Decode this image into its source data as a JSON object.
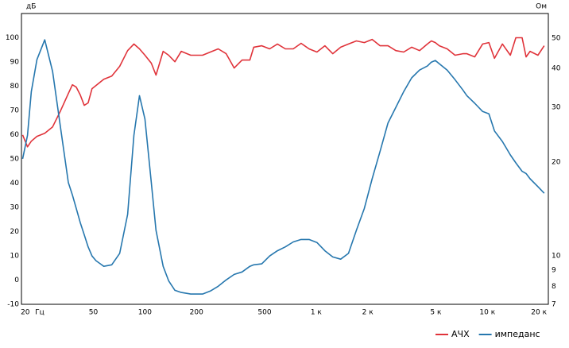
{
  "chart_data": {
    "type": "line",
    "ylabel": "дБ",
    "y2label": "Ом",
    "xlabel": "Гц",
    "x": [
      19.3,
      20.6,
      21.7,
      23.4,
      26,
      28.9,
      32.1,
      35.7,
      37.7,
      39.7,
      41.9,
      44.2,
      46.6,
      49.1,
      51.8,
      57.5,
      64,
      71.2,
      79.2,
      86.2,
      92.9,
      100,
      108.9,
      116,
      127.7,
      137.5,
      149.7,
      163,
      185,
      217,
      241,
      268,
      298,
      332,
      369,
      410,
      432,
      481,
      535,
      594,
      661,
      735,
      817,
      909,
      1010,
      1124,
      1250,
      1390,
      1545,
      1718,
      1910,
      2124,
      2362,
      2626,
      2920,
      3247,
      3611,
      4015,
      4465,
      4709,
      4965,
      5236,
      5822,
      6474,
      7197,
      7589,
      8437,
      9382,
      10208,
      10997,
      12241,
      13614,
      14655,
      15958,
      16828,
      17745,
      19731,
      21483
    ],
    "series": [
      {
        "name": "АЧХ",
        "color": "#e0333a",
        "values": [
          59.9,
          55,
          57.3,
          59.3,
          60.6,
          63.2,
          69.8,
          77,
          80.6,
          79.6,
          76.4,
          72.1,
          73.1,
          79,
          80.3,
          82.9,
          84.2,
          88.2,
          94.7,
          97.4,
          95.4,
          92.8,
          89.5,
          84.6,
          94.4,
          92.8,
          90.1,
          94.4,
          92.8,
          92.8,
          94.1,
          95.4,
          93.4,
          87.5,
          90.8,
          90.8,
          96.1,
          96.7,
          95.4,
          97.4,
          95.4,
          95.4,
          97.7,
          95.4,
          94.1,
          96.7,
          93.4,
          96.1,
          97.4,
          98.7,
          98,
          99.3,
          96.7,
          96.7,
          94.7,
          94.1,
          96.1,
          94.7,
          97.4,
          98.7,
          98,
          96.7,
          95.4,
          92.8,
          93.4,
          93.4,
          92.1,
          97.4,
          98,
          91.5,
          97.4,
          92.8,
          100,
          100,
          92.1,
          94.4,
          92.8,
          96.7
        ]
      },
      {
        "name": "импеданс",
        "color": "#2677ae",
        "axis": "y2",
        "values": [
          20.5,
          24.4,
          33.7,
          42.7,
          49.4,
          39.1,
          25.9,
          17.2,
          15.7,
          14.2,
          12.8,
          11.7,
          10.7,
          10.0,
          9.66,
          9.27,
          9.37,
          10.2,
          13.6,
          24.4,
          32.7,
          27.5,
          17.2,
          12.1,
          9.27,
          8.33,
          7.76,
          7.64,
          7.55,
          7.55,
          7.72,
          8.0,
          8.38,
          8.73,
          8.89,
          9.27,
          9.37,
          9.44,
          10.0,
          10.4,
          10.7,
          11.1,
          11.3,
          11.3,
          11.05,
          10.4,
          9.93,
          9.77,
          10.2,
          12.1,
          14.2,
          17.7,
          21.7,
          26.7,
          30.0,
          33.7,
          37.3,
          39.5,
          40.7,
          41.9,
          42.4,
          41.4,
          39.5,
          36.8,
          34.1,
          32.7,
          30.9,
          29.1,
          28.6,
          25.2,
          23.3,
          21.1,
          19.9,
          18.7,
          18.4,
          17.7,
          16.7,
          15.9
        ]
      }
    ],
    "xlog": true,
    "xlim": [
      19,
      22700
    ],
    "xticks": [
      20,
      50,
      100,
      200,
      500,
      {
        "value": 1000,
        "label": "1 к"
      },
      {
        "value": 2000,
        "label": "2 к"
      },
      {
        "value": 5000,
        "label": "5  к"
      },
      {
        "value": 10000,
        "label": "10 к"
      },
      {
        "value": 20000,
        "label": "20 к"
      }
    ],
    "xgrid": [
      20,
      30,
      40,
      50,
      60,
      70,
      80,
      90,
      100,
      200,
      300,
      400,
      500,
      600,
      700,
      800,
      900,
      1000,
      2000,
      3000,
      4000,
      5000,
      6000,
      7000,
      8000,
      9000,
      10000,
      20000
    ],
    "ylim": [
      -10,
      110
    ],
    "yticks": [
      -10,
      0,
      10,
      20,
      30,
      40,
      50,
      60,
      70,
      80,
      90,
      100
    ],
    "y2log": true,
    "y2lim": [
      7,
      60
    ],
    "y2ticks": [
      7,
      8,
      9,
      10,
      20,
      30,
      40,
      50
    ],
    "grid": true,
    "legend": "bottom-right"
  }
}
